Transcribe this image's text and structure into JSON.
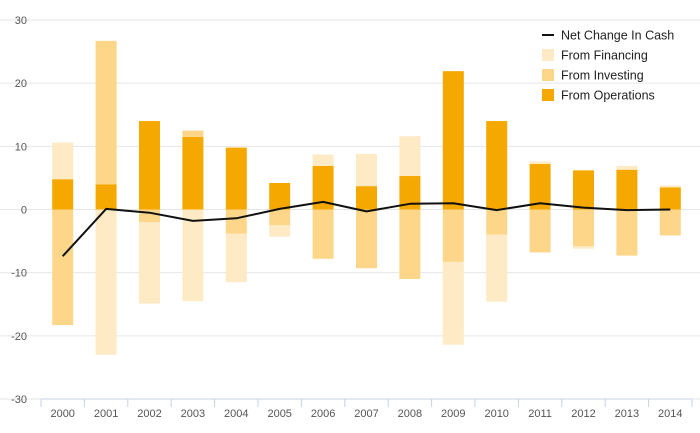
{
  "chart_data": {
    "type": "bar",
    "stacked": true,
    "title": "",
    "xlabel": "",
    "ylabel": "",
    "ylim": [
      -30,
      30
    ],
    "yticks": [
      30,
      20,
      10,
      0,
      -10,
      -20,
      -30
    ],
    "grid": true,
    "legend_position": "top-right",
    "categories": [
      "2000",
      "2001",
      "2002",
      "2003",
      "2004",
      "2005",
      "2006",
      "2007",
      "2008",
      "2009",
      "2010",
      "2011",
      "2012",
      "2013",
      "2014"
    ],
    "series": [
      {
        "name": "From Operations",
        "kind": "bar",
        "color": "#f5a800",
        "values": [
          4.8,
          4.0,
          14.0,
          11.5,
          9.8,
          4.2,
          6.9,
          3.7,
          5.3,
          21.9,
          14.0,
          7.2,
          6.2,
          6.3,
          3.5
        ]
      },
      {
        "name": "From Investing",
        "kind": "bar",
        "color": "#fdd68a",
        "values": [
          -18.3,
          22.7,
          -2.0,
          1.0,
          -3.8,
          -2.5,
          -7.8,
          -9.3,
          -11.0,
          -8.3,
          -4.0,
          -6.8,
          -5.8,
          -7.3,
          -4.1
        ]
      },
      {
        "name": "From Financing",
        "kind": "bar",
        "color": "#feeac4",
        "values": [
          5.8,
          -23.0,
          -12.9,
          -14.5,
          -7.7,
          -1.8,
          1.8,
          5.1,
          6.3,
          -13.1,
          -10.6,
          0.4,
          -0.4,
          0.6,
          0.3
        ]
      },
      {
        "name": "Net Change In Cash",
        "kind": "line",
        "color": "#111111",
        "values": [
          -7.4,
          0.1,
          -0.5,
          -1.8,
          -1.4,
          0.1,
          1.2,
          -0.3,
          0.9,
          1.0,
          -0.1,
          1.0,
          0.3,
          -0.1,
          0.0
        ]
      }
    ]
  }
}
